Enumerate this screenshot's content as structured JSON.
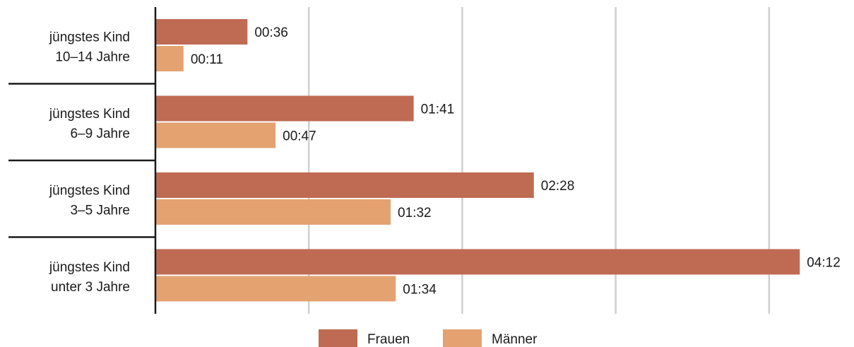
{
  "chart_data": {
    "type": "bar",
    "orientation": "horizontal",
    "categories": [
      [
        "jüngstes Kind",
        "10–14 Jahre"
      ],
      [
        "jüngstes Kind",
        "6–9 Jahre"
      ],
      [
        "jüngstes Kind",
        "3–5 Jahre"
      ],
      [
        "jüngstes Kind",
        "unter 3 Jahre"
      ]
    ],
    "series": [
      {
        "name": "Frauen",
        "color": "#bf6a53",
        "values": [
          36,
          101,
          148,
          252
        ],
        "labels": [
          "00:36",
          "01:41",
          "02:28",
          "04:12"
        ]
      },
      {
        "name": "Männer",
        "color": "#e4a271",
        "values": [
          11,
          47,
          92,
          94
        ],
        "labels": [
          "00:11",
          "00:47",
          "01:32",
          "01:34"
        ]
      }
    ],
    "x_unit": "minutes",
    "xlim": [
      0,
      260
    ],
    "grid": true,
    "legend": "bottom-center"
  }
}
